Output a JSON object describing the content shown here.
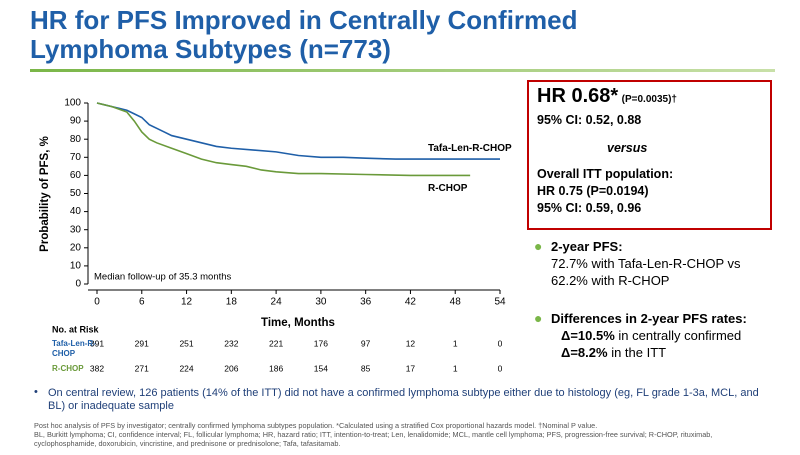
{
  "header": {
    "title": "HR for PFS Improved in Centrally Confirmed Lymphoma Subtypes (n=773)"
  },
  "chart_data": {
    "type": "line",
    "xlabel": "Time, Months",
    "ylabel": "Probability of PFS, %",
    "annotation": "Median follow-up of 35.3 months",
    "xlim": [
      0,
      54
    ],
    "xticks": [
      0,
      6,
      12,
      18,
      24,
      30,
      36,
      42,
      48,
      54
    ],
    "ylim": [
      0,
      100
    ],
    "yticks": [
      0,
      10,
      20,
      30,
      40,
      50,
      60,
      70,
      80,
      90,
      100
    ],
    "series": [
      {
        "name": "Tafa-Len-R-CHOP",
        "color": "#1f5fa8",
        "x": [
          0,
          1,
          2,
          3,
          4,
          5,
          6,
          7,
          8,
          9,
          10,
          12,
          14,
          16,
          18,
          21,
          24,
          27,
          30,
          33,
          36,
          40,
          48,
          54
        ],
        "values": [
          100,
          99,
          98,
          97,
          96,
          94,
          92,
          88,
          86,
          84,
          82,
          80,
          78,
          76,
          75,
          74,
          73,
          71,
          70,
          70,
          69.5,
          69,
          69,
          69
        ]
      },
      {
        "name": "R-CHOP",
        "color": "#6a9a3a",
        "x": [
          0,
          2,
          4,
          5,
          6,
          7,
          8,
          10,
          12,
          14,
          16,
          18,
          20,
          22,
          24,
          27,
          30,
          36,
          42,
          50
        ],
        "values": [
          100,
          98,
          95,
          90,
          84,
          80,
          78,
          75,
          72,
          69,
          67,
          66,
          65,
          63,
          62,
          61,
          61,
          60.5,
          60,
          60
        ]
      }
    ],
    "at_risk": {
      "title": "No. at Risk",
      "rows": [
        {
          "name": "Tafa-Len-R-CHOP",
          "values": [
            391,
            291,
            251,
            232,
            221,
            176,
            97,
            12,
            1,
            0
          ]
        },
        {
          "name": "R-CHOP",
          "values": [
            382,
            271,
            224,
            206,
            186,
            154,
            85,
            17,
            1,
            0
          ]
        }
      ]
    }
  },
  "result_box": {
    "lines": [
      "HR 0.68*",
      "(P=0.0035)†",
      "95% CI: 0.52, 0.88",
      "versus",
      "Overall ITT population:",
      "HR 0.75 (P=0.0194)",
      "95% CI: 0.59, 0.96"
    ]
  },
  "bullets": [
    {
      "heading": "2-year PFS:",
      "lines": [
        "72.7% with Tafa-Len-R-CHOP vs",
        "62.2% with R-CHOP"
      ]
    },
    {
      "heading": "Differences in 2-year PFS rates:",
      "lines": [
        {
          "bold": "Δ=10.5%",
          "text": " in centrally confirmed"
        },
        {
          "bold": "Δ=8.2%",
          "text": " in the ITT"
        }
      ]
    }
  ],
  "note": "On central review, 126 patients (14% of the ITT) did not have a confirmed lymphoma subtype either due to histology (eg, FL grade 1-3a, MCL, and BL) or inadequate sample",
  "footnotes": [
    "Post hoc analysis of PFS by investigator; centrally confirmed lymphoma subtypes population. *Calculated using a stratified Cox proportional hazards model. †Nominal P value.",
    "BL, Burkitt lymphoma; CI, confidence interval; FL, follicular lymphoma; HR, hazard ratio; ITT, intention-to-treat; Len, lenalidomide; MCL, mantle cell lymphoma; PFS, progression-free survival; R-CHOP, rituximab, cyclophosphamide, doxorubicin, vincristine, and prednisone or prednisolone; Tafa, tafasitamab."
  ]
}
